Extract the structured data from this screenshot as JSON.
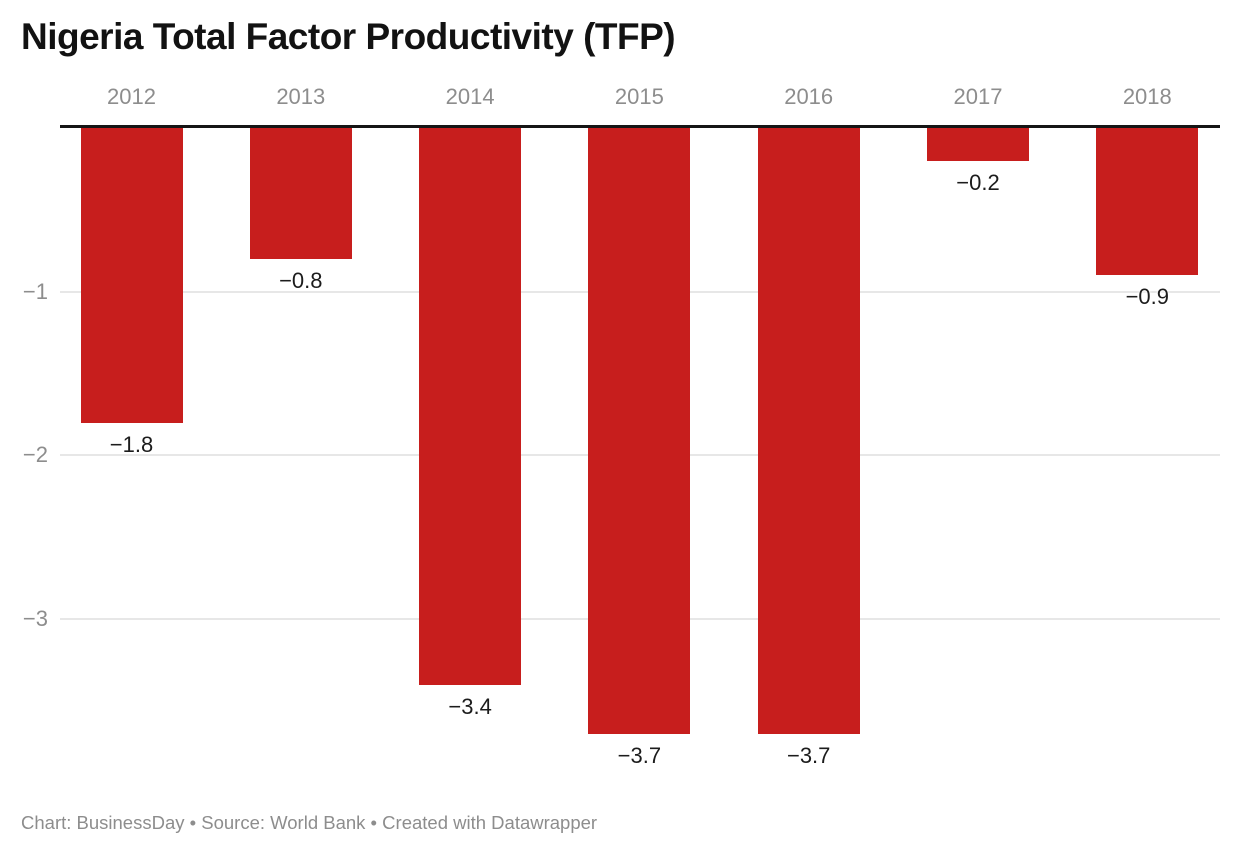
{
  "header": {
    "title": "Nigeria Total Factor Productivity (TFP)"
  },
  "chart_data": {
    "type": "bar",
    "title": "Nigeria Total Factor Productivity (TFP)",
    "categories": [
      "2012",
      "2013",
      "2014",
      "2015",
      "2016",
      "2017",
      "2018"
    ],
    "values": [
      -1.8,
      -0.8,
      -3.4,
      -3.7,
      -3.7,
      -0.2,
      -0.9
    ],
    "value_labels": [
      "−1.8",
      "−0.8",
      "−3.4",
      "−3.7",
      "−3.7",
      "−0.2",
      "−0.9"
    ],
    "y_ticks": [
      {
        "value": -1,
        "label": "−1"
      },
      {
        "value": -2,
        "label": "−2"
      },
      {
        "value": -3,
        "label": "−3"
      }
    ],
    "ylim": [
      -4,
      0
    ],
    "xlabel": "",
    "ylabel": "",
    "grid": true,
    "legend": "none",
    "x_axis_position": "top",
    "bar_color": "#c71e1d",
    "axis_line_color": "#151515",
    "gridline_color": "#e7e7e7",
    "value_label_color": "#1c1c1c",
    "tick_label_color": "#8d8d8d"
  },
  "footer": {
    "text": "Chart: BusinessDay • Source: World Bank • Created with Datawrapper"
  }
}
